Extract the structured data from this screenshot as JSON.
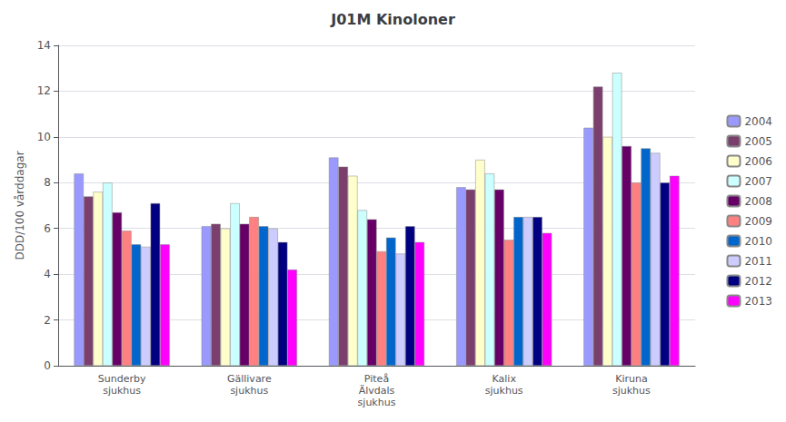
{
  "chart_data": {
    "type": "bar",
    "title": "J01M Kinoloner",
    "ylabel": "DDD/100 vårddagar",
    "categories": [
      "Sunderby\nsjukhus",
      "Gällivare\nsjukhus",
      "Piteå\nÄlvdals\nsjukhus",
      "Kalix\nsjukhus",
      "Kiruna\nsjukhus"
    ],
    "series": [
      {
        "name": "2004",
        "color": "#9999FF",
        "values": [
          8.4,
          6.1,
          9.1,
          7.8,
          10.4
        ]
      },
      {
        "name": "2005",
        "color": "#7B3F6E",
        "values": [
          7.4,
          6.2,
          8.7,
          7.7,
          12.2
        ]
      },
      {
        "name": "2006",
        "color": "#FFFFCC",
        "values": [
          7.6,
          6.0,
          8.3,
          9.0,
          10.0
        ]
      },
      {
        "name": "2007",
        "color": "#CCFFFF",
        "values": [
          8.0,
          7.1,
          6.8,
          8.4,
          12.8
        ]
      },
      {
        "name": "2008",
        "color": "#660066",
        "values": [
          6.7,
          6.2,
          6.4,
          7.7,
          9.6
        ]
      },
      {
        "name": "2009",
        "color": "#FF8080",
        "values": [
          5.9,
          6.5,
          5.0,
          5.5,
          8.0
        ]
      },
      {
        "name": "2010",
        "color": "#0066CC",
        "values": [
          5.3,
          6.1,
          5.6,
          6.5,
          9.5
        ]
      },
      {
        "name": "2011",
        "color": "#CCCCFF",
        "values": [
          5.2,
          6.0,
          4.9,
          6.5,
          9.3
        ]
      },
      {
        "name": "2012",
        "color": "#000080",
        "values": [
          7.1,
          5.4,
          6.1,
          6.5,
          8.0
        ]
      },
      {
        "name": "2013",
        "color": "#FF00FF",
        "values": [
          5.3,
          4.2,
          5.4,
          5.8,
          8.3
        ]
      }
    ],
    "ylim": [
      0,
      14
    ],
    "yticks": [
      0,
      2,
      4,
      6,
      8,
      10,
      12,
      14
    ],
    "grid": true,
    "legend": "right"
  }
}
